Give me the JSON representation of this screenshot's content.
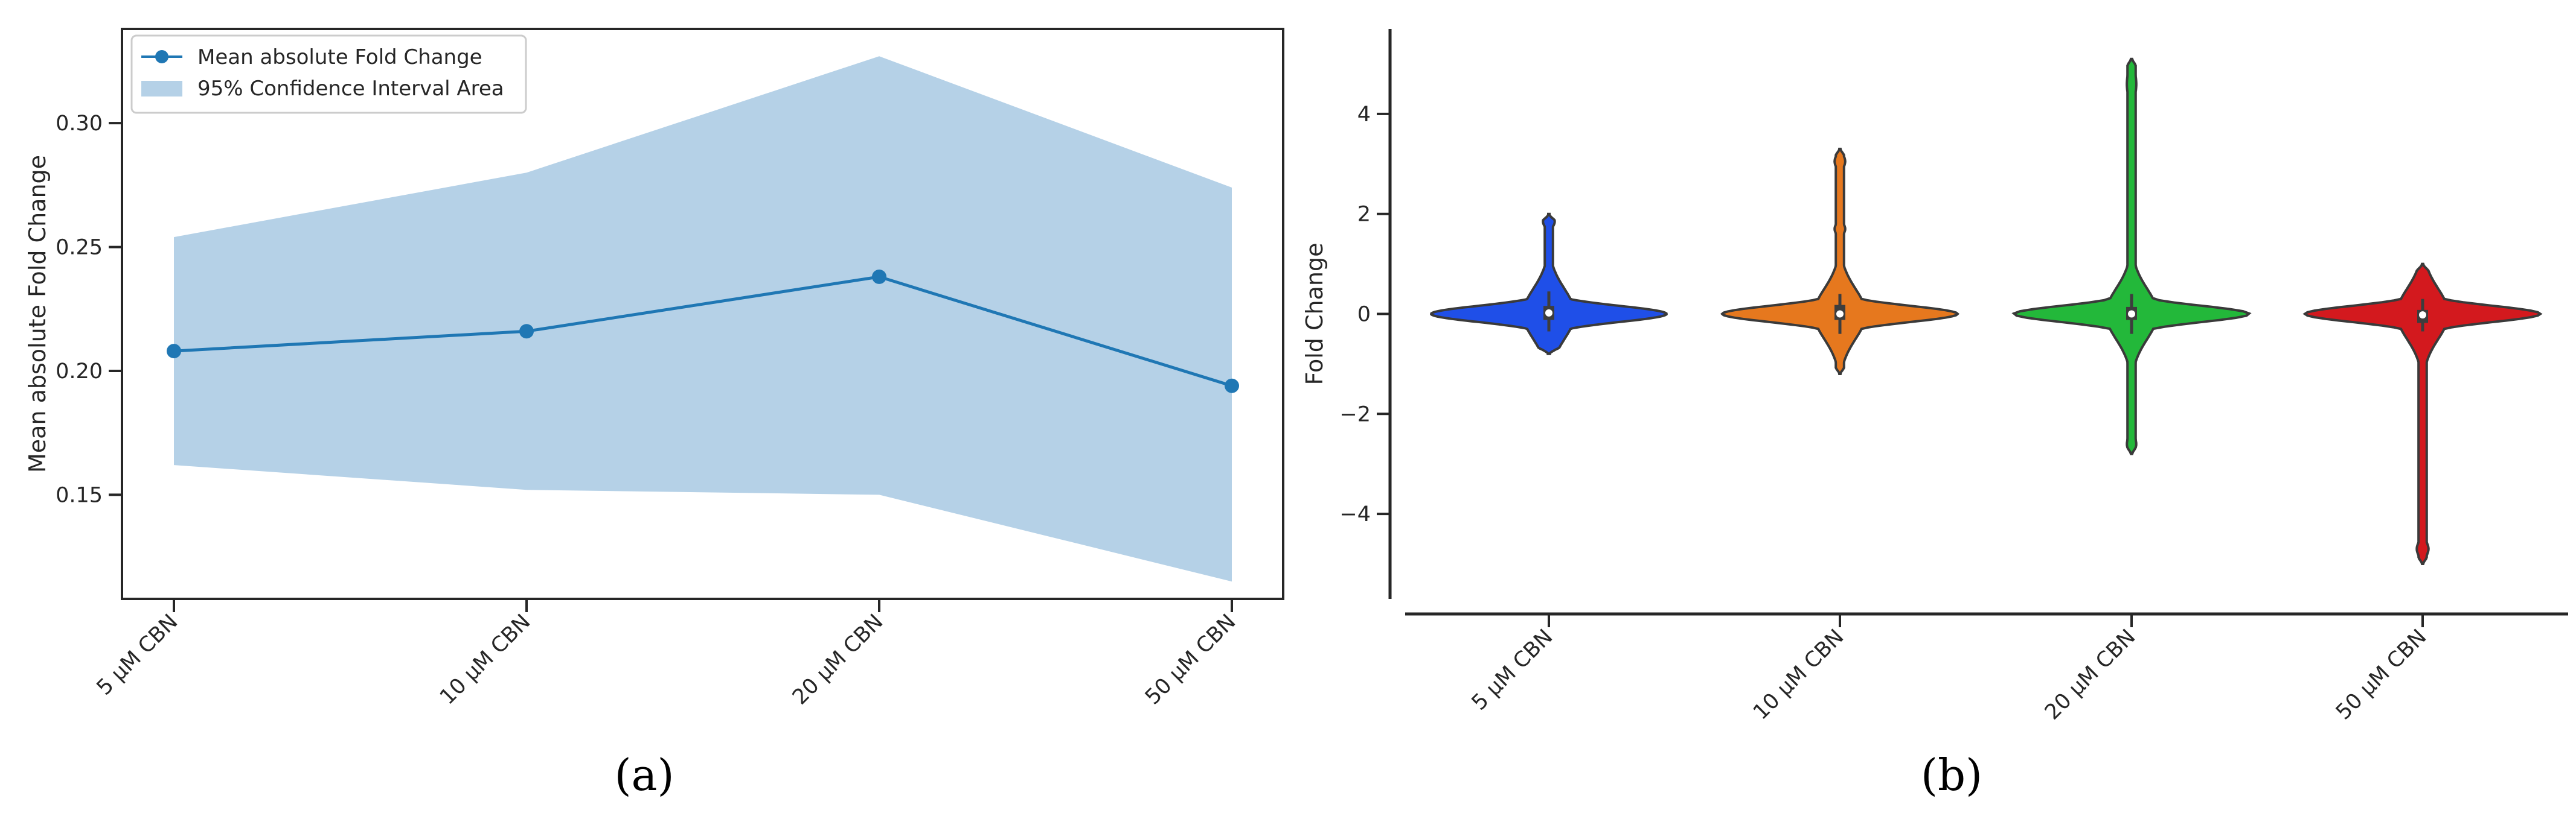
{
  "chart_data": [
    {
      "panel": "(a)",
      "type": "line",
      "categories": [
        "5 µM CBN",
        "10 µM CBN",
        "20 µM CBN",
        "50 µM CBN"
      ],
      "series": [
        {
          "name": "Mean absolute Fold Change",
          "values": [
            0.208,
            0.216,
            0.238,
            0.194
          ],
          "color": "#1f77b4"
        },
        {
          "name": "95% Confidence Interval Area",
          "type": "area",
          "lower": [
            0.162,
            0.152,
            0.15,
            0.115
          ],
          "upper": [
            0.254,
            0.28,
            0.327,
            0.274
          ],
          "color": "#b5d1e7"
        }
      ],
      "ylabel": "Mean absolute Fold Change",
      "xlabel": "",
      "ylim": [
        0.108,
        0.338
      ],
      "yticks": [
        0.15,
        0.2,
        0.25,
        0.3
      ],
      "ytick_labels": [
        "0.15",
        "0.20",
        "0.25",
        "0.30"
      ],
      "legend_placement": "top-left",
      "grid": false
    },
    {
      "panel": "(b)",
      "type": "violin",
      "categories": [
        "5 µM CBN",
        "10 µM CBN",
        "20 µM CBN",
        "50 µM CBN"
      ],
      "colors": [
        "#1f4fe8",
        "#e6781e",
        "#23b83a",
        "#d3191e"
      ],
      "distributions": [
        {
          "min": -0.8,
          "max": 2.0,
          "q1": -0.12,
          "median": 0.02,
          "q3": 0.16,
          "whisker_low": -0.35,
          "whisker_high": 0.45
        },
        {
          "min": -1.2,
          "max": 3.3,
          "q1": -0.12,
          "median": 0.0,
          "q3": 0.18,
          "whisker_low": -0.4,
          "whisker_high": 0.4
        },
        {
          "min": -2.8,
          "max": 5.1,
          "q1": -0.12,
          "median": 0.0,
          "q3": 0.14,
          "whisker_low": -0.4,
          "whisker_high": 0.4
        },
        {
          "min": -5.0,
          "max": 1.0,
          "q1": -0.18,
          "median": -0.02,
          "q3": 0.08,
          "whisker_low": -0.35,
          "whisker_high": 0.3
        }
      ],
      "ylabel": "Fold Change",
      "xlabel": "",
      "ylim": [
        -5.7,
        5.7
      ],
      "yticks": [
        -4,
        -2,
        0,
        2,
        4
      ],
      "ytick_labels": [
        "−4",
        "−2",
        "0",
        "2",
        "4"
      ],
      "grid": false
    }
  ]
}
